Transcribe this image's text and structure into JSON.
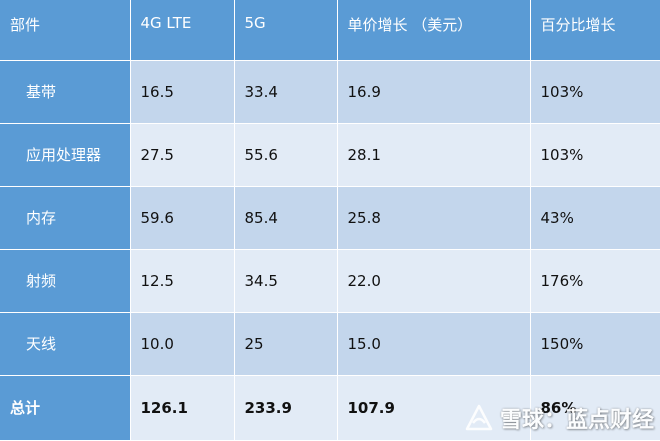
{
  "table": {
    "headers": [
      "部件",
      "4G LTE",
      "5G",
      "单价增长 （美元）",
      "百分比增长"
    ],
    "rows": [
      {
        "label": "基带",
        "lte": "16.5",
        "g5": "33.4",
        "increase": "16.9",
        "percent": "103%"
      },
      {
        "label": "应用处理器",
        "lte": "27.5",
        "g5": "55.6",
        "increase": "28.1",
        "percent": "103%"
      },
      {
        "label": "内存",
        "lte": "59.6",
        "g5": "85.4",
        "increase": "25.8",
        "percent": "43%"
      },
      {
        "label": "射频",
        "lte": "12.5",
        "g5": "34.5",
        "increase": "22.0",
        "percent": "176%"
      },
      {
        "label": "天线",
        "lte": "10.0",
        "g5": "25",
        "increase": "15.0",
        "percent": "150%"
      }
    ],
    "total": {
      "label": "总计",
      "lte": "126.1",
      "g5": "233.9",
      "increase": "107.9",
      "percent": "86%"
    }
  },
  "watermark": {
    "text": "雪球：蓝点财经",
    "icon": "snowball-logo-icon"
  },
  "colors": {
    "header_bg": "#5a9bd5",
    "row_dark": "#c3d6ec",
    "row_light": "#e2ebf6"
  }
}
